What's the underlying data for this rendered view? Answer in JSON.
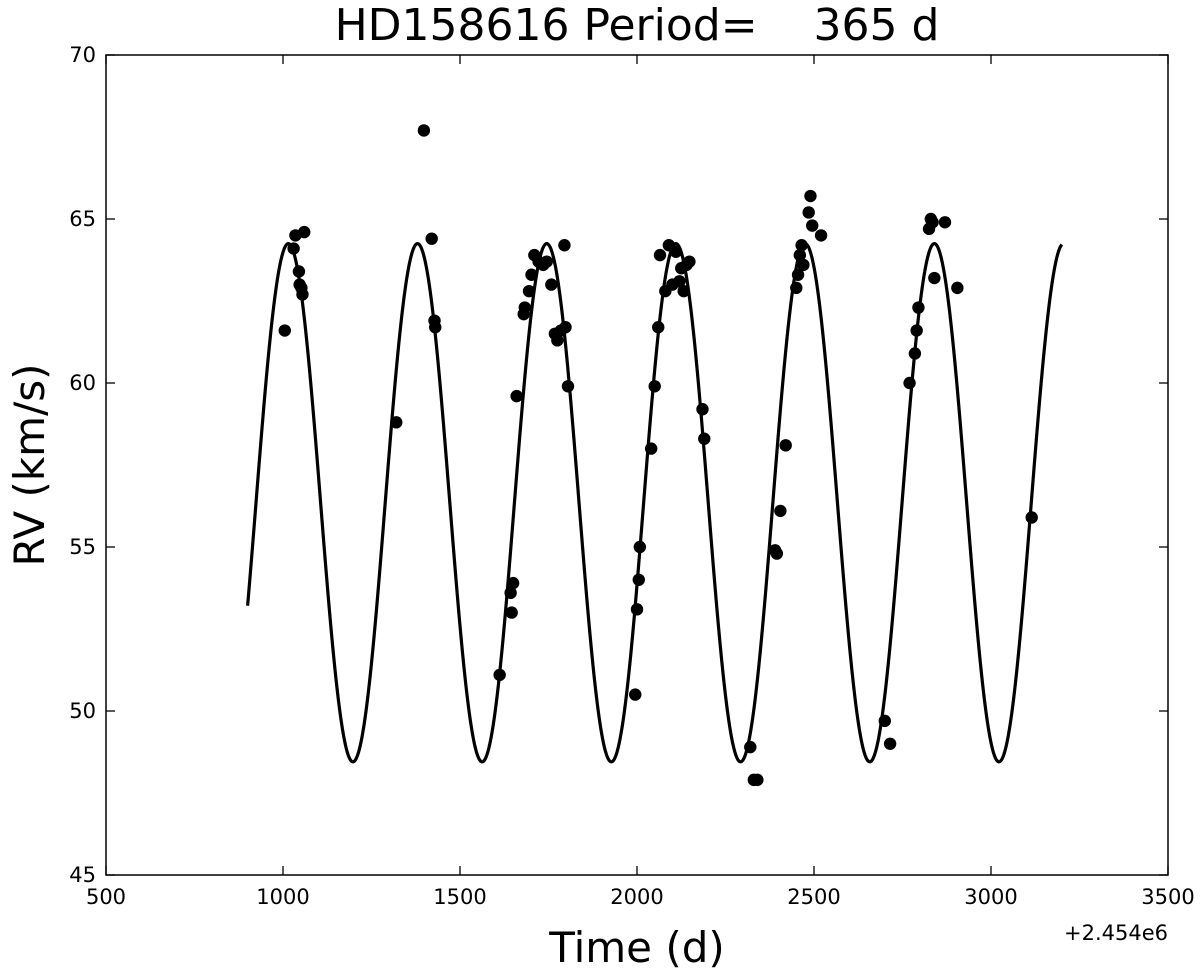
{
  "chart_data": {
    "type": "scatter",
    "title": "HD158616 Period=    365 d",
    "xlabel": "Time (d)",
    "ylabel": "RV (km/s)",
    "x_offset_label": "+2.454e6",
    "xlim": [
      500,
      3500
    ],
    "ylim": [
      45,
      70
    ],
    "xticks": [
      500,
      1000,
      1500,
      2000,
      2500,
      3000,
      3500
    ],
    "yticks": [
      45,
      50,
      55,
      60,
      65,
      70
    ],
    "grid": false,
    "colors": {
      "points": "#000000",
      "fit_line": "#000000",
      "frame": "#000000"
    },
    "fit": {
      "type": "sinusoid",
      "period_d": 365,
      "x_range": [
        900,
        3200
      ],
      "mean": 56.35,
      "amplitude": 7.9,
      "peak_at_x": 1015
    },
    "series": [
      {
        "points": [
          [
            1005,
            61.6
          ],
          [
            1030,
            64.1
          ],
          [
            1035,
            64.5
          ],
          [
            1045,
            63.4
          ],
          [
            1047,
            63.0
          ],
          [
            1052,
            62.9
          ],
          [
            1055,
            62.7
          ],
          [
            1060,
            64.6
          ],
          [
            1320,
            58.8
          ],
          [
            1398,
            67.7
          ],
          [
            1420,
            64.4
          ],
          [
            1428,
            61.9
          ],
          [
            1430,
            61.7
          ],
          [
            1612,
            51.1
          ],
          [
            1643,
            53.6
          ],
          [
            1646,
            53.0
          ],
          [
            1650,
            53.9
          ],
          [
            1660,
            59.6
          ],
          [
            1680,
            62.1
          ],
          [
            1683,
            62.3
          ],
          [
            1695,
            62.8
          ],
          [
            1702,
            63.3
          ],
          [
            1710,
            63.9
          ],
          [
            1722,
            63.7
          ],
          [
            1735,
            63.6
          ],
          [
            1745,
            63.7
          ],
          [
            1758,
            63.0
          ],
          [
            1768,
            61.5
          ],
          [
            1775,
            61.3
          ],
          [
            1785,
            61.6
          ],
          [
            1795,
            64.2
          ],
          [
            1798,
            61.7
          ],
          [
            1805,
            59.9
          ],
          [
            1995,
            50.5
          ],
          [
            2000,
            53.1
          ],
          [
            2005,
            54.0
          ],
          [
            2008,
            55.0
          ],
          [
            2040,
            58.0
          ],
          [
            2050,
            59.9
          ],
          [
            2060,
            61.7
          ],
          [
            2065,
            63.9
          ],
          [
            2080,
            62.8
          ],
          [
            2090,
            64.2
          ],
          [
            2100,
            63.0
          ],
          [
            2110,
            64.0
          ],
          [
            2120,
            63.1
          ],
          [
            2125,
            63.5
          ],
          [
            2132,
            62.8
          ],
          [
            2140,
            63.6
          ],
          [
            2148,
            63.7
          ],
          [
            2185,
            59.2
          ],
          [
            2190,
            58.3
          ],
          [
            2320,
            48.9
          ],
          [
            2330,
            47.9
          ],
          [
            2340,
            47.9
          ],
          [
            2390,
            54.9
          ],
          [
            2395,
            54.8
          ],
          [
            2405,
            56.1
          ],
          [
            2420,
            58.1
          ],
          [
            2450,
            62.9
          ],
          [
            2455,
            63.3
          ],
          [
            2460,
            63.9
          ],
          [
            2465,
            64.2
          ],
          [
            2470,
            63.6
          ],
          [
            2485,
            65.2
          ],
          [
            2490,
            65.7
          ],
          [
            2495,
            64.8
          ],
          [
            2520,
            64.5
          ],
          [
            2700,
            49.7
          ],
          [
            2715,
            49.0
          ],
          [
            2770,
            60.0
          ],
          [
            2785,
            60.9
          ],
          [
            2790,
            61.6
          ],
          [
            2795,
            62.3
          ],
          [
            2825,
            64.7
          ],
          [
            2830,
            65.0
          ],
          [
            2835,
            64.9
          ],
          [
            2840,
            63.2
          ],
          [
            2870,
            64.9
          ],
          [
            2905,
            62.9
          ],
          [
            3115,
            55.9
          ]
        ]
      }
    ]
  }
}
